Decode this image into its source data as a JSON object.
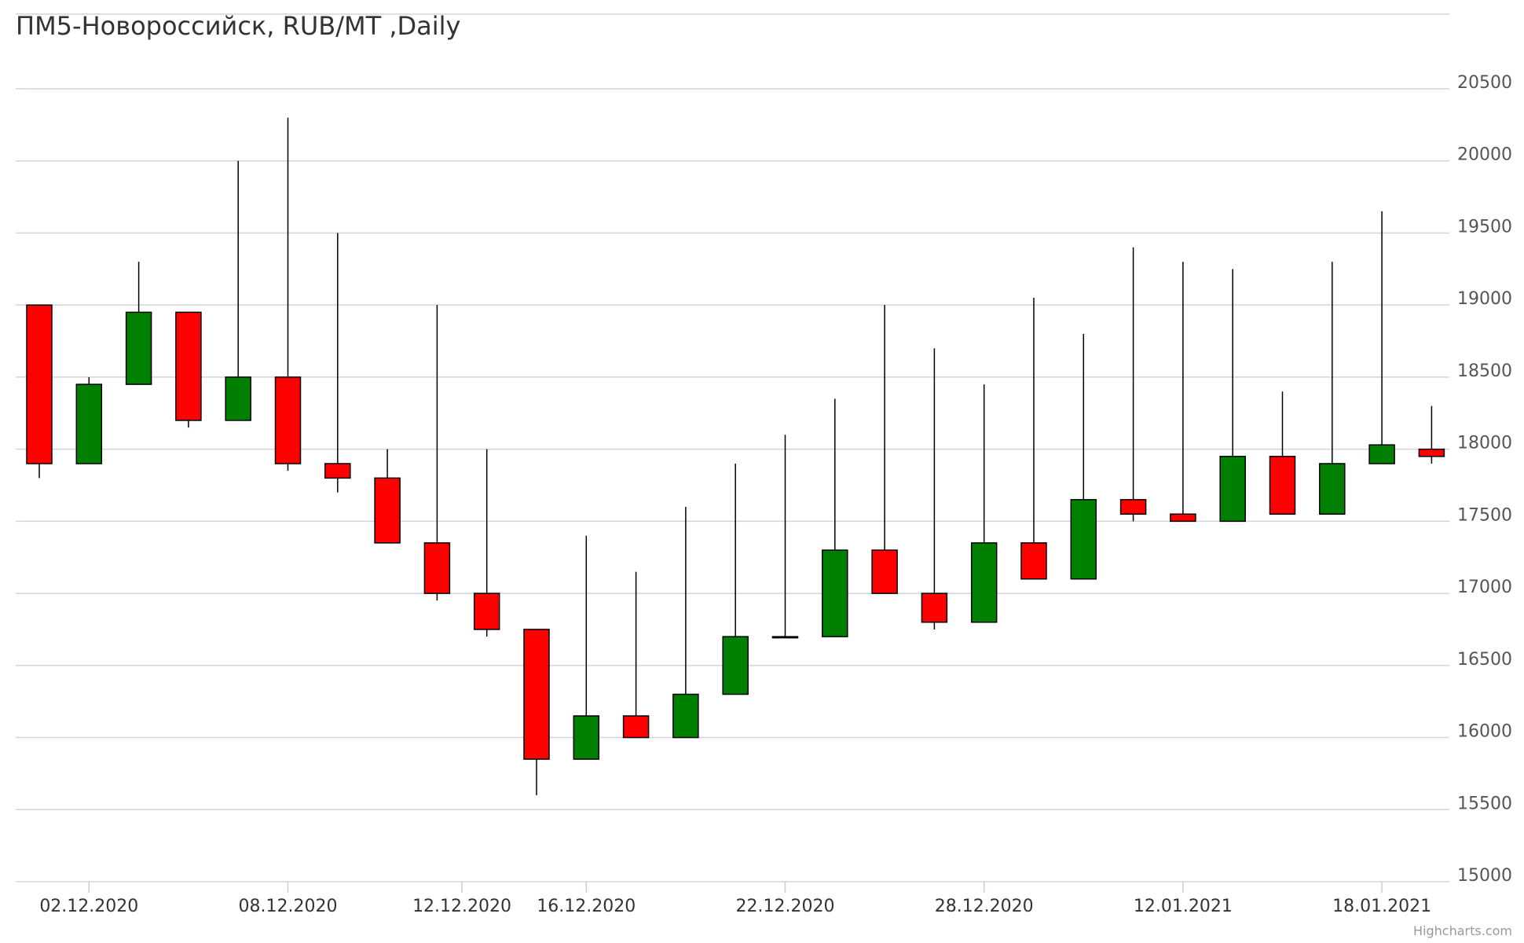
{
  "chart_data": {
    "type": "candlestick",
    "title": "ПМ5-Новороссийск, RUB/MT ,Daily",
    "credits": "Highcharts.com",
    "ylim": [
      14900,
      21000
    ],
    "y_ticks": [
      15000,
      15500,
      16000,
      16500,
      17000,
      17500,
      18000,
      18500,
      19000,
      19500,
      20000,
      20500
    ],
    "x_tick_labels": [
      {
        "index": 1,
        "label": "02.12.2020"
      },
      {
        "index": 5,
        "label": "08.12.2020"
      },
      {
        "index": 8.5,
        "label": "12.12.2020"
      },
      {
        "index": 11,
        "label": "16.12.2020"
      },
      {
        "index": 15,
        "label": "22.12.2020"
      },
      {
        "index": 19,
        "label": "28.12.2020"
      },
      {
        "index": 23,
        "label": "12.01.2021"
      },
      {
        "index": 27,
        "label": "18.01.2021"
      }
    ],
    "colors": {
      "up": "#008000",
      "down": "#ff0000",
      "wick": "#000000",
      "grid": "#d0d5dc"
    },
    "candles": [
      {
        "open": 19000,
        "high": 19000,
        "low": 17800,
        "close": 17900
      },
      {
        "open": 17900,
        "high": 18500,
        "low": 17900,
        "close": 18450
      },
      {
        "open": 18450,
        "high": 19300,
        "low": 18450,
        "close": 18950
      },
      {
        "open": 18950,
        "high": 18950,
        "low": 18150,
        "close": 18200
      },
      {
        "open": 18200,
        "high": 20000,
        "low": 18200,
        "close": 18500
      },
      {
        "open": 18500,
        "high": 20300,
        "low": 17850,
        "close": 17900
      },
      {
        "open": 17900,
        "high": 19500,
        "low": 17700,
        "close": 17800
      },
      {
        "open": 17800,
        "high": 18000,
        "low": 17350,
        "close": 17350
      },
      {
        "open": 17350,
        "high": 19000,
        "low": 16950,
        "close": 17000
      },
      {
        "open": 17000,
        "high": 18000,
        "low": 16700,
        "close": 16750
      },
      {
        "open": 16750,
        "high": 16750,
        "low": 15600,
        "close": 15850
      },
      {
        "open": 15850,
        "high": 17400,
        "low": 15850,
        "close": 16150
      },
      {
        "open": 16150,
        "high": 17150,
        "low": 16000,
        "close": 16000
      },
      {
        "open": 16000,
        "high": 17600,
        "low": 16000,
        "close": 16300
      },
      {
        "open": 16300,
        "high": 17900,
        "low": 16300,
        "close": 16700
      },
      {
        "open": 16700,
        "high": 18100,
        "low": 16700,
        "close": 16700
      },
      {
        "open": 16700,
        "high": 18350,
        "low": 16700,
        "close": 17300
      },
      {
        "open": 17300,
        "high": 19000,
        "low": 17000,
        "close": 17000
      },
      {
        "open": 17000,
        "high": 18700,
        "low": 16750,
        "close": 16800
      },
      {
        "open": 16800,
        "high": 18450,
        "low": 16800,
        "close": 17350
      },
      {
        "open": 17350,
        "high": 19050,
        "low": 17100,
        "close": 17100
      },
      {
        "open": 17100,
        "high": 18800,
        "low": 17100,
        "close": 17650
      },
      {
        "open": 17650,
        "high": 19400,
        "low": 17500,
        "close": 17550
      },
      {
        "open": 17550,
        "high": 19300,
        "low": 17500,
        "close": 17500
      },
      {
        "open": 17500,
        "high": 19250,
        "low": 17500,
        "close": 17950
      },
      {
        "open": 17950,
        "high": 18400,
        "low": 17550,
        "close": 17550
      },
      {
        "open": 17550,
        "high": 19300,
        "low": 17550,
        "close": 17900
      },
      {
        "open": 17900,
        "high": 19650,
        "low": 17900,
        "close": 18030
      },
      {
        "open": 18000,
        "high": 18300,
        "low": 17900,
        "close": 17950
      }
    ]
  }
}
